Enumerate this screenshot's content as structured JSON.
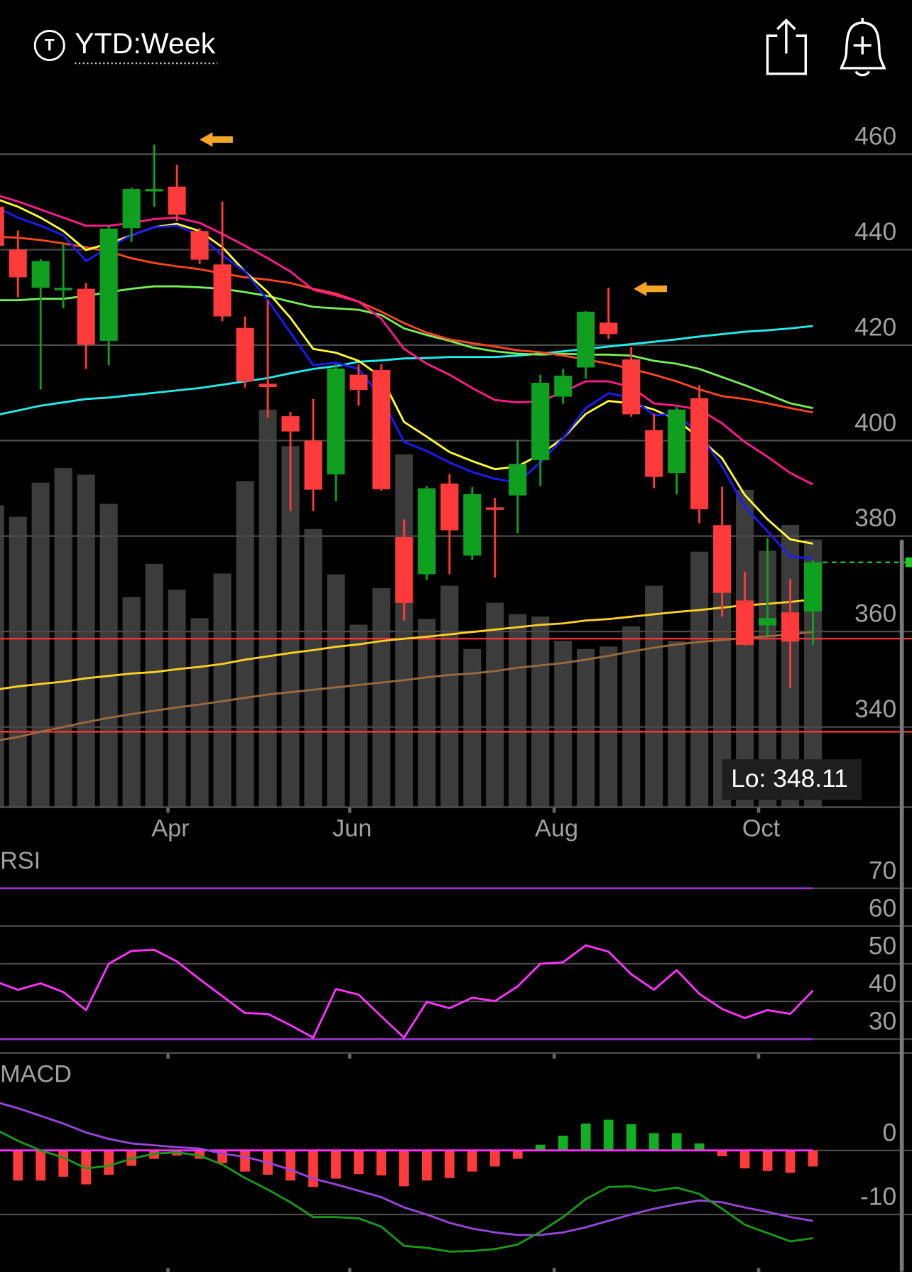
{
  "header": {
    "range": "YTD:Week"
  },
  "chart_data": [
    {
      "type": "candlestick",
      "categories": [
        null,
        null,
        null,
        null,
        null,
        null,
        null,
        null,
        "Apr",
        null,
        null,
        null,
        null,
        null,
        null,
        null,
        "Jun",
        null,
        null,
        null,
        null,
        null,
        null,
        null,
        null,
        "Aug",
        null,
        null,
        null,
        null,
        null,
        null,
        null,
        null,
        "Oct",
        null,
        null
      ],
      "open": [
        449.0,
        440.0,
        432.0,
        432.0,
        431.8,
        420.9,
        444.5,
        452.5,
        453.2,
        443.9,
        436.9,
        423.6,
        411.9,
        405.1,
        400.0,
        392.9,
        413.8,
        414.8,
        379.8,
        372.0,
        391.0,
        375.9,
        386.0,
        388.5,
        395.9,
        409.2,
        415.3,
        424.7,
        417.0,
        402.2,
        393.2,
        408.9,
        382.3,
        366.5,
        361.3,
        364.0,
        364.2
      ],
      "high": [
        452.0,
        444.0,
        438.0,
        441.3,
        433.0,
        445.0,
        453.0,
        462.0,
        457.8,
        444.5,
        450.1,
        426.0,
        429.4,
        406.0,
        408.7,
        416.0,
        416.0,
        416.0,
        383.5,
        390.5,
        393.0,
        390.3,
        388.0,
        400.2,
        413.8,
        415.0,
        427.1,
        432.0,
        419.6,
        405.6,
        407.0,
        411.6,
        390.3,
        372.5,
        379.6,
        371.0,
        375.0
      ],
      "low": [
        438.0,
        430.0,
        410.7,
        427.7,
        415.0,
        415.8,
        441.6,
        449.0,
        446.0,
        437.0,
        425.0,
        411.1,
        404.8,
        385.2,
        385.2,
        387.3,
        407.3,
        389.5,
        362.3,
        370.8,
        372.0,
        375.0,
        371.3,
        380.5,
        390.5,
        407.7,
        413.0,
        421.3,
        405.0,
        390.0,
        388.7,
        382.7,
        363.1,
        357.0,
        359.2,
        348.11,
        357.2
      ],
      "close": [
        440.8,
        434.2,
        437.6,
        432.0,
        420.1,
        444.4,
        452.7,
        452.7,
        447.3,
        437.9,
        426.0,
        412.4,
        411.2,
        401.9,
        389.7,
        415.1,
        410.6,
        389.8,
        366.0,
        390.0,
        381.2,
        388.8,
        385.6,
        395.1,
        412.1,
        413.6,
        427.0,
        422.3,
        405.5,
        392.4,
        406.5,
        385.6,
        368.1,
        357.2,
        362.8,
        357.9,
        374.5
      ],
      "up_color": "#10a020",
      "down_color": "#ff3a3a",
      "volume": {
        "values": [
          372,
          358,
          400,
          418,
          410,
          374,
          259,
          300,
          268,
          233,
          288,
          402,
          490,
          445,
          343,
          287,
          225,
          270,
          435,
          232,
          273,
          195,
          252,
          238,
          235,
          205,
          195,
          198,
          223,
          273,
          205,
          315,
          303,
          391,
          316,
          348,
          330
        ],
        "color": "#3c3c3c",
        "lim": [
          0,
          875
        ]
      },
      "moving_averages": [
        {
          "color": "#ffd21f",
          "values": [
            347.8,
            348.5,
            349.0,
            349.5,
            350.2,
            350.7,
            351.2,
            351.5,
            352.1,
            352.6,
            353.2,
            354.1,
            354.8,
            355.5,
            356.1,
            356.8,
            357.3,
            358.0,
            358.5,
            358.9,
            359.4,
            359.9,
            360.4,
            360.9,
            361.4,
            361.7,
            362.3,
            362.6,
            363.1,
            363.6,
            364.1,
            364.5,
            365.0,
            365.5,
            365.8,
            366.2,
            366.7
          ]
        },
        {
          "color": "#9a6a3a",
          "values": [
            337.1,
            337.9,
            339.0,
            340.0,
            341.0,
            341.9,
            342.7,
            343.4,
            344.1,
            344.7,
            345.4,
            346.1,
            346.8,
            347.3,
            347.8,
            348.3,
            348.8,
            349.3,
            349.8,
            350.4,
            350.9,
            351.2,
            351.7,
            352.4,
            352.9,
            353.4,
            354.1,
            354.9,
            355.8,
            356.6,
            357.3,
            357.8,
            358.2,
            358.7,
            359.0,
            359.4,
            359.9
          ]
        },
        {
          "color": "#22eeee",
          "values": [
            405.3,
            406.3,
            407.3,
            408.0,
            408.7,
            409.0,
            409.5,
            410.0,
            410.5,
            411.0,
            411.7,
            412.4,
            413.1,
            414.1,
            415.0,
            415.6,
            416.5,
            416.8,
            417.2,
            417.3,
            417.5,
            417.5,
            417.5,
            417.8,
            418.2,
            418.7,
            419.2,
            419.7,
            420.2,
            420.7,
            421.2,
            421.8,
            422.3,
            422.8,
            423.1,
            423.5,
            424.0
          ]
        },
        {
          "color": "#77ee55",
          "values": [
            429.4,
            429.4,
            429.7,
            429.7,
            430.3,
            431.1,
            431.8,
            432.3,
            432.3,
            432.1,
            431.8,
            431.1,
            430.3,
            429.1,
            428.0,
            427.7,
            427.4,
            426.3,
            423.5,
            422.1,
            420.9,
            419.5,
            418.7,
            418.2,
            418.0,
            418.2,
            418.0,
            418.0,
            417.8,
            416.7,
            416.1,
            415.0,
            413.3,
            411.6,
            409.7,
            407.8,
            406.8
          ]
        },
        {
          "color": "#ff4422",
          "values": [
            442.7,
            442.5,
            442.0,
            441.3,
            440.5,
            439.6,
            438.2,
            437.2,
            436.5,
            435.9,
            435.0,
            434.2,
            433.7,
            433.0,
            431.8,
            430.8,
            429.1,
            427.0,
            424.6,
            422.6,
            421.2,
            420.4,
            419.7,
            418.9,
            418.5,
            417.8,
            417.0,
            416.1,
            415.0,
            413.8,
            412.4,
            410.7,
            409.3,
            408.7,
            407.8,
            406.8,
            405.9
          ]
        },
        {
          "color": "#ff1a8c",
          "values": [
            451.5,
            450.1,
            448.4,
            446.7,
            445.0,
            445.0,
            445.6,
            446.4,
            446.7,
            445.6,
            443.3,
            440.8,
            438.2,
            435.4,
            431.6,
            430.4,
            429.1,
            425.5,
            419.2,
            416.1,
            413.8,
            411.0,
            408.5,
            408.0,
            408.2,
            410.2,
            412.4,
            412.4,
            411.2,
            407.8,
            407.3,
            406.5,
            403.6,
            399.7,
            396.6,
            393.2,
            390.8
          ]
        },
        {
          "color": "#ffff33",
          "values": [
            450.7,
            449.0,
            446.7,
            443.9,
            439.9,
            441.3,
            443.0,
            444.7,
            445.4,
            443.9,
            440.5,
            435.4,
            431.1,
            425.7,
            419.2,
            418.4,
            416.7,
            413.3,
            403.9,
            400.8,
            397.6,
            395.7,
            394.0,
            394.6,
            397.1,
            400.5,
            405.6,
            408.3,
            407.8,
            406.5,
            404.4,
            400.5,
            396.3,
            388.6,
            383.5,
            379.3,
            378.4
          ]
        },
        {
          "color": "#1a1aff",
          "values": [
            449.0,
            446.7,
            445.0,
            443.0,
            437.6,
            440.5,
            443.0,
            444.7,
            445.0,
            443.0,
            438.8,
            435.4,
            429.4,
            422.6,
            415.8,
            416.3,
            415.0,
            409.0,
            399.7,
            397.8,
            395.4,
            393.4,
            392.0,
            391.2,
            395.4,
            400.5,
            406.8,
            409.9,
            409.0,
            405.3,
            405.6,
            401.4,
            394.6,
            386.1,
            381.0,
            375.7,
            375.3
          ]
        }
      ],
      "hlines": [
        {
          "value": 358.5,
          "color": "#ff3333"
        },
        {
          "value": 339.0,
          "color": "#ff3333"
        }
      ],
      "last_price": {
        "value": 374.5,
        "color": "#22cc22"
      },
      "low_label": "Lo: 348.11",
      "ylim": [
        323.2,
        471.9
      ],
      "yticks": [
        340,
        360,
        380,
        400,
        420,
        440,
        460
      ],
      "grid": true
    },
    {
      "type": "rsi",
      "label": "RSI",
      "series": [
        {
          "color": "#ff33ff",
          "values": [
            45.3,
            43.1,
            44.8,
            42.5,
            37.7,
            50.0,
            53.4,
            53.7,
            50.6,
            45.9,
            41.4,
            36.9,
            36.7,
            33.7,
            30.4,
            43.3,
            41.8,
            36.0,
            30.4,
            39.9,
            38.2,
            41.0,
            40.1,
            44.0,
            50.0,
            50.4,
            54.9,
            53.2,
            47.2,
            43.1,
            48.3,
            42.0,
            38.0,
            35.6,
            37.7,
            36.7,
            42.9
          ]
        }
      ],
      "bands": [
        30,
        70
      ],
      "band_color": "#9933cc",
      "ylim": [
        25.9,
        79.7
      ],
      "yticks": [
        30,
        40,
        50,
        60,
        70
      ],
      "grid": true
    },
    {
      "type": "macd",
      "label": "MACD",
      "histogram": [
        null,
        -4.7,
        -4.7,
        -4.1,
        -5.3,
        -3.8,
        -2.4,
        -1.3,
        -0.8,
        -1.3,
        -2.0,
        -3.3,
        -3.8,
        -4.7,
        -5.7,
        -4.4,
        -3.7,
        -3.9,
        -5.6,
        -4.7,
        -4.3,
        -3.3,
        -2.5,
        -1.3,
        0.9,
        2.3,
        4.2,
        4.8,
        4.1,
        2.7,
        2.7,
        1.1,
        -0.9,
        -2.8,
        -3.2,
        -3.5,
        -2.5
      ],
      "up_color": "#10b020",
      "down_color": "#ff3a3a",
      "series": [
        {
          "color": "#9944dd",
          "values": [
            7.6,
            6.6,
            5.4,
            4.2,
            2.8,
            1.8,
            1.1,
            0.8,
            0.5,
            0.3,
            -0.5,
            -1.0,
            -1.9,
            -3.0,
            -4.4,
            -5.3,
            -6.3,
            -7.3,
            -8.9,
            -10.0,
            -11.3,
            -12.2,
            -12.8,
            -13.2,
            -13.2,
            -12.8,
            -12.0,
            -11.0,
            -10.0,
            -9.1,
            -8.4,
            -7.8,
            -8.1,
            -8.9,
            -9.6,
            -10.4,
            -11.0
          ]
        },
        {
          "color": "#1a9a1a",
          "values": [
            3.3,
            1.5,
            0,
            -1.1,
            -2.8,
            -2.4,
            -1.3,
            -0.5,
            -0.3,
            -0.8,
            -2.2,
            -4.3,
            -6.1,
            -8.1,
            -10.4,
            -10.4,
            -10.6,
            -11.9,
            -14.9,
            -15.2,
            -15.8,
            -15.7,
            -15.4,
            -14.7,
            -12.7,
            -10.4,
            -7.6,
            -5.7,
            -5.6,
            -6.3,
            -5.8,
            -6.8,
            -9.1,
            -11.6,
            -12.9,
            -14.2,
            -13.7
          ]
        }
      ],
      "zero_line_color": "#ff33ff",
      "ylim": [
        -18.6,
        13.7
      ],
      "yticks": [
        0,
        -10
      ],
      "grid": true
    }
  ]
}
